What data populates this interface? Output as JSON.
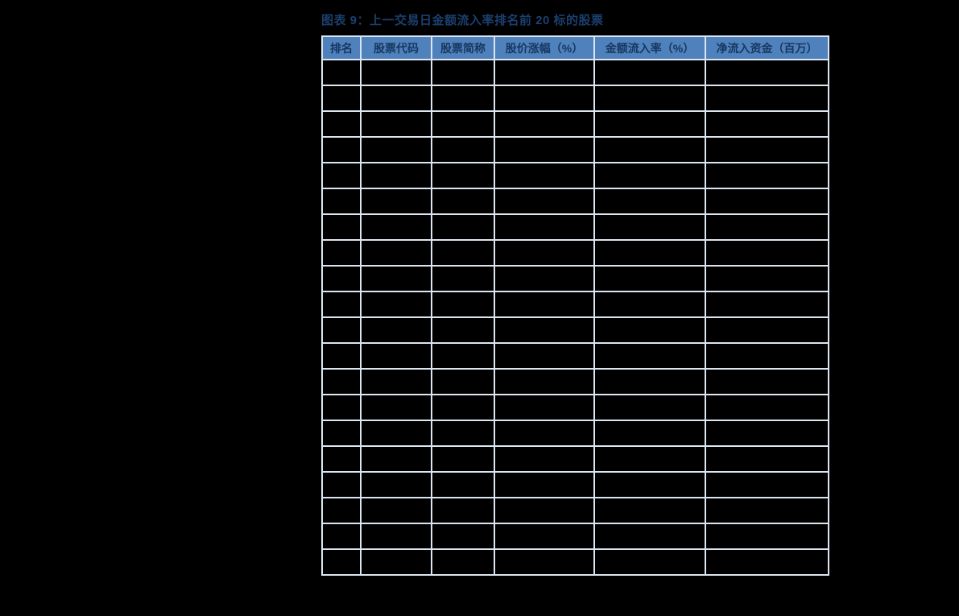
{
  "figure": {
    "title": "图表 9：上一交易日金额流入率排名前 20 标的股票"
  },
  "table": {
    "columns": [
      "排名",
      "股票代码",
      "股票简称",
      "股价涨幅（%）",
      "金额流入率（%）",
      "净流入资金（百万）"
    ],
    "rows": [
      [
        "",
        "",
        "",
        "",
        "",
        ""
      ],
      [
        "",
        "",
        "",
        "",
        "",
        ""
      ],
      [
        "",
        "",
        "",
        "",
        "",
        ""
      ],
      [
        "",
        "",
        "",
        "",
        "",
        ""
      ],
      [
        "",
        "",
        "",
        "",
        "",
        ""
      ],
      [
        "",
        "",
        "",
        "",
        "",
        ""
      ],
      [
        "",
        "",
        "",
        "",
        "",
        ""
      ],
      [
        "",
        "",
        "",
        "",
        "",
        ""
      ],
      [
        "",
        "",
        "",
        "",
        "",
        ""
      ],
      [
        "",
        "",
        "",
        "",
        "",
        ""
      ],
      [
        "",
        "",
        "",
        "",
        "",
        ""
      ],
      [
        "",
        "",
        "",
        "",
        "",
        ""
      ],
      [
        "",
        "",
        "",
        "",
        "",
        ""
      ],
      [
        "",
        "",
        "",
        "",
        "",
        ""
      ],
      [
        "",
        "",
        "",
        "",
        "",
        ""
      ],
      [
        "",
        "",
        "",
        "",
        "",
        ""
      ],
      [
        "",
        "",
        "",
        "",
        "",
        ""
      ],
      [
        "",
        "",
        "",
        "",
        "",
        ""
      ],
      [
        "",
        "",
        "",
        "",
        "",
        ""
      ],
      [
        "",
        "",
        "",
        "",
        "",
        ""
      ]
    ]
  },
  "colors": {
    "page_background": "#000000",
    "header_background": "#4f81bd",
    "header_text": "#17375e",
    "grid_line": "#dce6f1",
    "title_text": "#1b3f6e",
    "cell_background": "#000000"
  }
}
